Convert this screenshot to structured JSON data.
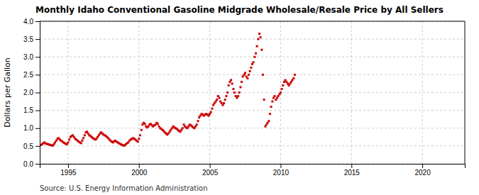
{
  "chart_data": {
    "type": "scatter",
    "title": "Monthly Idaho Conventional Gasoline Midgrade Wholesale/Resale Price by All Sellers",
    "ylabel": "Dollars per Gallon",
    "annotation": "Source: U.S. Energy Information Administration",
    "color": "#cc0000",
    "marker": "square",
    "grid": true,
    "xlim": [
      1993.0,
      2023.0
    ],
    "ylim": [
      0.0,
      4.0
    ],
    "xticks": [
      1995,
      2000,
      2005,
      2010,
      2015,
      2020
    ],
    "yticks": [
      {
        "value": 0.0,
        "label": "0.0"
      },
      0.5,
      {
        "value": 1.0,
        "label": "1.0"
      },
      1.5,
      {
        "value": 2.0,
        "label": "2.0"
      },
      2.5,
      {
        "value": 3.0,
        "label": "3.0"
      },
      3.5,
      {
        "value": 4.0,
        "label": "4.0"
      }
    ],
    "x": [
      1993.0,
      1993.08,
      1993.17,
      1993.25,
      1993.33,
      1993.42,
      1993.5,
      1993.58,
      1993.67,
      1993.75,
      1993.83,
      1993.92,
      1994.0,
      1994.08,
      1994.17,
      1994.25,
      1994.33,
      1994.42,
      1994.5,
      1994.58,
      1994.67,
      1994.75,
      1994.83,
      1994.92,
      1995.0,
      1995.08,
      1995.17,
      1995.25,
      1995.33,
      1995.42,
      1995.5,
      1995.58,
      1995.67,
      1995.75,
      1995.83,
      1995.92,
      1996.0,
      1996.08,
      1996.17,
      1996.25,
      1996.33,
      1996.42,
      1996.5,
      1996.58,
      1996.67,
      1996.75,
      1996.83,
      1996.92,
      1997.0,
      1997.08,
      1997.17,
      1997.25,
      1997.33,
      1997.42,
      1997.5,
      1997.58,
      1997.67,
      1997.75,
      1997.83,
      1997.92,
      1998.0,
      1998.08,
      1998.17,
      1998.25,
      1998.33,
      1998.42,
      1998.5,
      1998.58,
      1998.67,
      1998.75,
      1998.83,
      1998.92,
      1999.0,
      1999.08,
      1999.17,
      1999.25,
      1999.33,
      1999.42,
      1999.5,
      1999.58,
      1999.67,
      1999.75,
      1999.83,
      1999.92,
      2000.0,
      2000.08,
      2000.17,
      2000.25,
      2000.33,
      2000.42,
      2000.5,
      2000.58,
      2000.67,
      2000.75,
      2000.83,
      2000.92,
      2001.0,
      2001.08,
      2001.17,
      2001.25,
      2001.33,
      2001.42,
      2001.5,
      2001.58,
      2001.67,
      2001.75,
      2001.83,
      2001.92,
      2002.0,
      2002.08,
      2002.17,
      2002.25,
      2002.33,
      2002.42,
      2002.5,
      2002.58,
      2002.67,
      2002.75,
      2002.83,
      2002.92,
      2003.0,
      2003.08,
      2003.17,
      2003.25,
      2003.33,
      2003.42,
      2003.5,
      2003.58,
      2003.67,
      2003.75,
      2003.83,
      2003.92,
      2004.0,
      2004.08,
      2004.17,
      2004.25,
      2004.33,
      2004.42,
      2004.5,
      2004.58,
      2004.67,
      2004.75,
      2004.83,
      2004.92,
      2005.0,
      2005.08,
      2005.17,
      2005.25,
      2005.33,
      2005.42,
      2005.5,
      2005.58,
      2005.67,
      2005.75,
      2005.83,
      2005.92,
      2006.0,
      2006.08,
      2006.17,
      2006.25,
      2006.33,
      2006.42,
      2006.5,
      2006.58,
      2006.67,
      2006.75,
      2006.83,
      2006.92,
      2007.0,
      2007.08,
      2007.17,
      2007.25,
      2007.33,
      2007.42,
      2007.5,
      2007.58,
      2007.67,
      2007.75,
      2007.83,
      2007.92,
      2008.0,
      2008.08,
      2008.17,
      2008.25,
      2008.33,
      2008.42,
      2008.5,
      2008.58,
      2008.67,
      2008.75,
      2008.83,
      2008.92,
      2009.0,
      2009.08,
      2009.17,
      2009.25,
      2009.33,
      2009.42,
      2009.5,
      2009.58,
      2009.67,
      2009.75,
      2009.83,
      2009.92,
      2010.0,
      2010.08,
      2010.17,
      2010.25,
      2010.33,
      2010.42,
      2010.5,
      2010.58,
      2010.67,
      2010.75,
      2010.83,
      2010.92,
      2011.0
    ],
    "values": [
      0.52,
      0.53,
      0.55,
      0.58,
      0.6,
      0.57,
      0.56,
      0.55,
      0.54,
      0.53,
      0.52,
      0.51,
      0.55,
      0.6,
      0.65,
      0.7,
      0.72,
      0.68,
      0.65,
      0.63,
      0.6,
      0.58,
      0.56,
      0.55,
      0.6,
      0.68,
      0.75,
      0.78,
      0.8,
      0.75,
      0.7,
      0.68,
      0.65,
      0.62,
      0.6,
      0.58,
      0.65,
      0.72,
      0.8,
      0.88,
      0.9,
      0.85,
      0.8,
      0.78,
      0.75,
      0.72,
      0.7,
      0.68,
      0.7,
      0.75,
      0.8,
      0.85,
      0.88,
      0.85,
      0.82,
      0.8,
      0.78,
      0.75,
      0.72,
      0.68,
      0.65,
      0.62,
      0.6,
      0.63,
      0.65,
      0.62,
      0.6,
      0.58,
      0.56,
      0.54,
      0.53,
      0.51,
      0.52,
      0.55,
      0.58,
      0.6,
      0.65,
      0.68,
      0.7,
      0.72,
      0.7,
      0.68,
      0.65,
      0.62,
      0.7,
      0.8,
      0.95,
      1.1,
      1.15,
      1.12,
      1.05,
      1.02,
      1.05,
      1.1,
      1.12,
      1.08,
      1.05,
      1.08,
      1.1,
      1.15,
      1.12,
      1.05,
      1.0,
      0.98,
      0.95,
      0.92,
      0.88,
      0.85,
      0.82,
      0.85,
      0.9,
      0.95,
      1.0,
      1.05,
      1.02,
      1.0,
      0.98,
      0.95,
      0.92,
      0.9,
      0.95,
      1.0,
      1.1,
      1.05,
      1.02,
      1.0,
      1.05,
      1.1,
      1.08,
      1.05,
      1.02,
      1.0,
      1.05,
      1.1,
      1.2,
      1.3,
      1.35,
      1.4,
      1.38,
      1.35,
      1.38,
      1.4,
      1.38,
      1.35,
      1.4,
      1.45,
      1.55,
      1.65,
      1.7,
      1.75,
      1.8,
      1.9,
      1.85,
      1.75,
      1.7,
      1.65,
      1.7,
      1.8,
      1.9,
      2.0,
      2.2,
      2.3,
      2.35,
      2.25,
      2.1,
      2.0,
      1.9,
      1.85,
      1.9,
      2.0,
      2.15,
      2.3,
      2.45,
      2.5,
      2.55,
      2.45,
      2.4,
      2.5,
      2.6,
      2.7,
      2.8,
      2.85,
      3.0,
      3.1,
      3.3,
      3.5,
      3.65,
      3.55,
      3.2,
      2.5,
      1.8,
      1.05,
      1.1,
      1.15,
      1.2,
      1.4,
      1.6,
      1.75,
      1.85,
      1.9,
      1.8,
      1.85,
      1.9,
      1.95,
      2.0,
      2.1,
      2.2,
      2.3,
      2.35,
      2.3,
      2.25,
      2.2,
      2.25,
      2.3,
      2.35,
      2.4,
      2.5
    ]
  }
}
